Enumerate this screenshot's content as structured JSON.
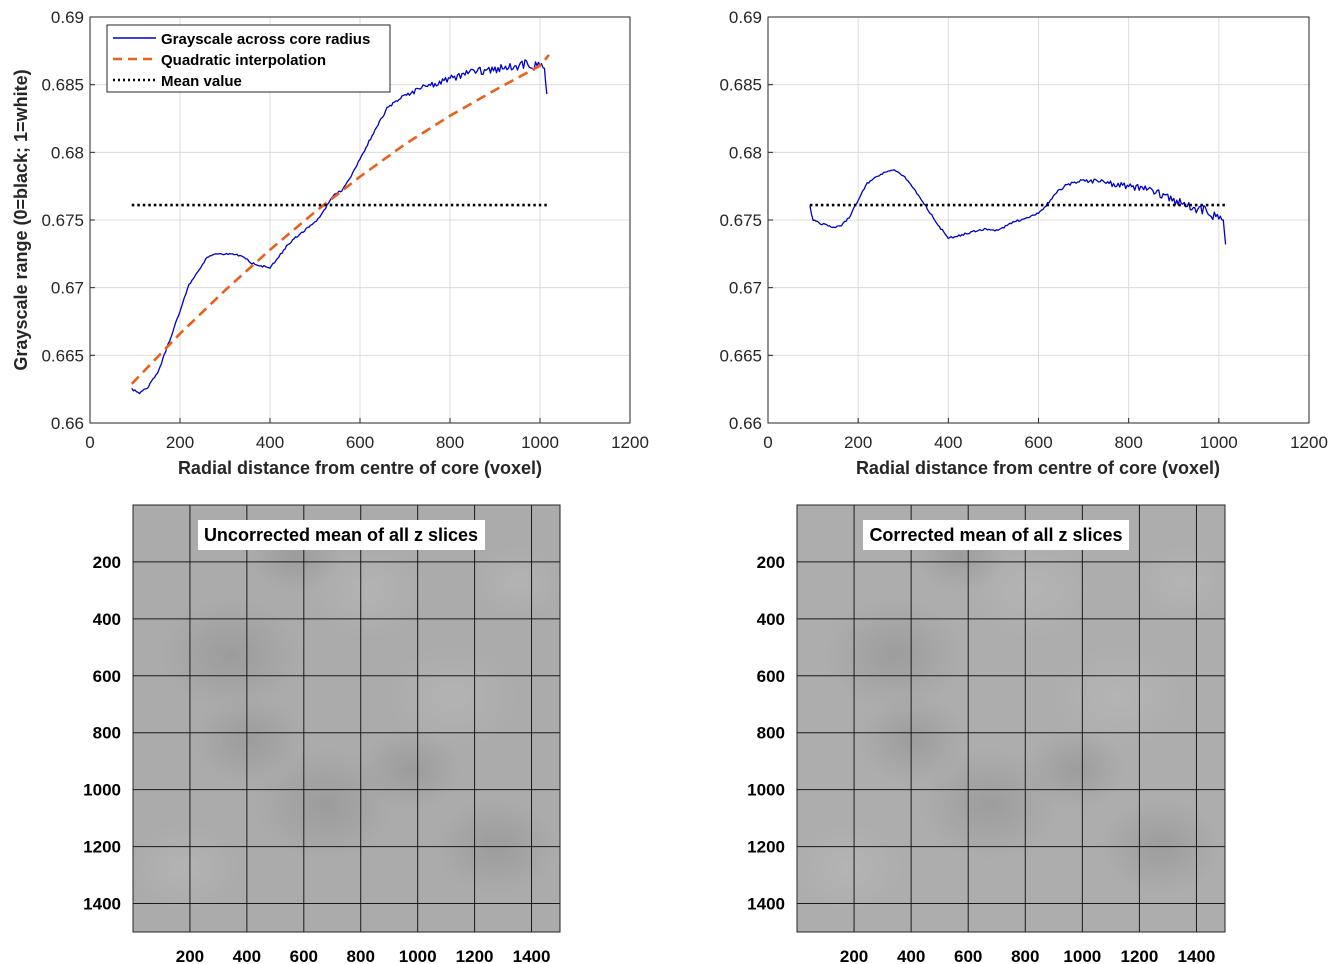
{
  "chart_data": [
    {
      "type": "line",
      "xlabel": "Radial distance from centre of core (voxel)",
      "ylabel": "Grayscale range (0=black; 1=white)",
      "xlim": [
        0,
        1200
      ],
      "ylim": [
        0.66,
        0.69
      ],
      "xticks": [
        0,
        200,
        400,
        600,
        800,
        1000,
        1200
      ],
      "yticks": [
        0.66,
        0.665,
        0.67,
        0.675,
        0.68,
        0.685,
        0.69
      ],
      "grid": true,
      "legend_position": "top-left",
      "series": [
        {
          "name": "Grayscale across core radius",
          "style": "solid",
          "color": "#0000cc",
          "x": [
            93,
            110,
            130,
            150,
            165,
            180,
            200,
            220,
            240,
            260,
            280,
            300,
            320,
            340,
            360,
            380,
            400,
            420,
            440,
            460,
            480,
            500,
            520,
            540,
            560,
            580,
            600,
            620,
            640,
            660,
            680,
            700,
            720,
            740,
            760,
            780,
            800,
            820,
            840,
            860,
            880,
            900,
            920,
            940,
            960,
            980,
            1000,
            1010,
            1015
          ],
          "y": [
            0.6625,
            0.6622,
            0.6627,
            0.6637,
            0.665,
            0.6664,
            0.6683,
            0.6702,
            0.6712,
            0.6722,
            0.6725,
            0.6725,
            0.6725,
            0.6723,
            0.6718,
            0.6716,
            0.6715,
            0.6723,
            0.6732,
            0.6738,
            0.6743,
            0.6748,
            0.6757,
            0.6768,
            0.6772,
            0.6782,
            0.6795,
            0.6808,
            0.682,
            0.6832,
            0.6838,
            0.6842,
            0.6845,
            0.6848,
            0.685,
            0.6852,
            0.6855,
            0.6856,
            0.6858,
            0.686,
            0.686,
            0.6862,
            0.6863,
            0.6864,
            0.6865,
            0.6864,
            0.6866,
            0.686,
            0.6843
          ]
        },
        {
          "name": "Quadratic interpolation",
          "style": "dashed",
          "color": "#e8601c",
          "x": [
            93,
            200,
            300,
            400,
            500,
            600,
            700,
            800,
            900,
            1000,
            1020
          ],
          "y": [
            0.6629,
            0.6666,
            0.6698,
            0.6728,
            0.6756,
            0.6782,
            0.6806,
            0.6827,
            0.6846,
            0.6864,
            0.6872
          ]
        },
        {
          "name": "Mean value",
          "style": "dotted",
          "color": "#000000",
          "x": [
            93,
            1015
          ],
          "y": [
            0.6761,
            0.6761
          ]
        }
      ]
    },
    {
      "type": "line",
      "xlabel": "Radial distance from centre of core (voxel)",
      "ylabel": "",
      "xlim": [
        0,
        1200
      ],
      "ylim": [
        0.66,
        0.69
      ],
      "xticks": [
        0,
        200,
        400,
        600,
        800,
        1000,
        1200
      ],
      "yticks": [
        0.66,
        0.665,
        0.67,
        0.675,
        0.68,
        0.685,
        0.69
      ],
      "grid": true,
      "series": [
        {
          "style": "solid",
          "color": "#0000cc",
          "x": [
            93,
            100,
            120,
            140,
            160,
            180,
            200,
            220,
            240,
            260,
            280,
            300,
            320,
            340,
            360,
            380,
            400,
            420,
            440,
            460,
            480,
            500,
            520,
            540,
            560,
            580,
            600,
            620,
            640,
            660,
            680,
            700,
            720,
            740,
            760,
            780,
            800,
            820,
            840,
            860,
            880,
            900,
            920,
            940,
            960,
            980,
            1000,
            1010,
            1015
          ],
          "y": [
            0.676,
            0.675,
            0.6747,
            0.6745,
            0.6745,
            0.6752,
            0.6765,
            0.6777,
            0.6782,
            0.6785,
            0.6787,
            0.6783,
            0.6775,
            0.6765,
            0.6755,
            0.6745,
            0.6737,
            0.6738,
            0.674,
            0.6742,
            0.6743,
            0.6742,
            0.6744,
            0.6748,
            0.675,
            0.6752,
            0.6755,
            0.6762,
            0.677,
            0.6775,
            0.6778,
            0.6779,
            0.6779,
            0.6778,
            0.6777,
            0.6776,
            0.6775,
            0.6774,
            0.6772,
            0.677,
            0.6768,
            0.6765,
            0.6763,
            0.676,
            0.6758,
            0.6755,
            0.6753,
            0.6748,
            0.6732
          ]
        },
        {
          "style": "dotted",
          "color": "#000000",
          "x": [
            93,
            1015
          ],
          "y": [
            0.6761,
            0.6761
          ]
        }
      ]
    },
    {
      "type": "heatmap",
      "title": "Uncorrected mean of all z slices",
      "xticks": [
        200,
        400,
        600,
        800,
        1000,
        1200,
        1400
      ],
      "yticks": [
        200,
        400,
        600,
        800,
        1000,
        1200,
        1400
      ],
      "xlim": [
        0,
        1500
      ],
      "ylim": [
        0,
        1500
      ],
      "grid": true,
      "colormap": "gray"
    },
    {
      "type": "heatmap",
      "title": "Corrected mean of all z slices",
      "xticks": [
        200,
        400,
        600,
        800,
        1000,
        1200,
        1400
      ],
      "yticks": [
        200,
        400,
        600,
        800,
        1000,
        1200,
        1400
      ],
      "xlim": [
        0,
        1500
      ],
      "ylim": [
        0,
        1500
      ],
      "grid": true,
      "colormap": "gray"
    }
  ]
}
